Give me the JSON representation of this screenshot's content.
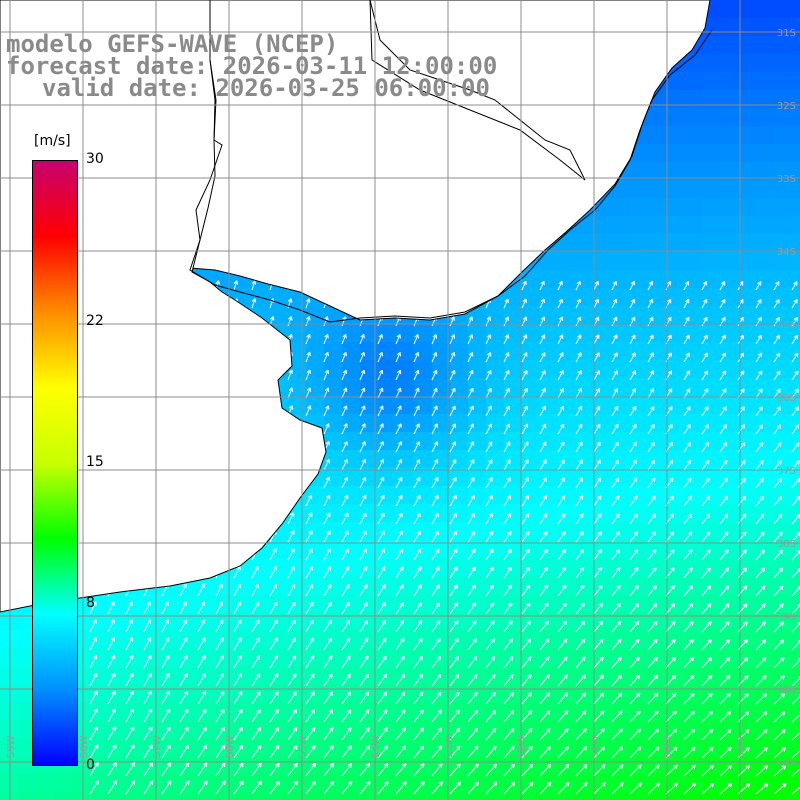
{
  "title": {
    "model": "modelo GEFS-WAVE (NCEP)",
    "forecast": "forecast date: 2026-03-11 12:00:00",
    "valid": "valid date: 2026-03-25 06:00:00"
  },
  "colorbar": {
    "unit": "[m/s]",
    "ticks": [
      {
        "label": "30",
        "value": 30
      },
      {
        "label": "22",
        "value": 22
      },
      {
        "label": "15",
        "value": 15
      },
      {
        "label": "8",
        "value": 8
      },
      {
        "label": "0",
        "value": 0
      }
    ],
    "min": 0,
    "max": 30,
    "colors": [
      "#0000ff",
      "#0090ff",
      "#00ffff",
      "#00ff00",
      "#c8ff00",
      "#ffff00",
      "#ff8c00",
      "#ff0000",
      "#c8006e"
    ]
  },
  "map": {
    "lat_labels": [
      "31S",
      "32S",
      "33S",
      "34S",
      "35S",
      "36S",
      "37S",
      "38S",
      "39S",
      "40S",
      "41S"
    ],
    "lon_labels": [
      "59W",
      "58W",
      "57W",
      "56W",
      "55W",
      "54W",
      "53W",
      "52W",
      "51W",
      "50W",
      "49W"
    ],
    "land_color": "#ffffff",
    "grid_color": "#8c8c8c",
    "arrow_color": "#ffffff"
  }
}
